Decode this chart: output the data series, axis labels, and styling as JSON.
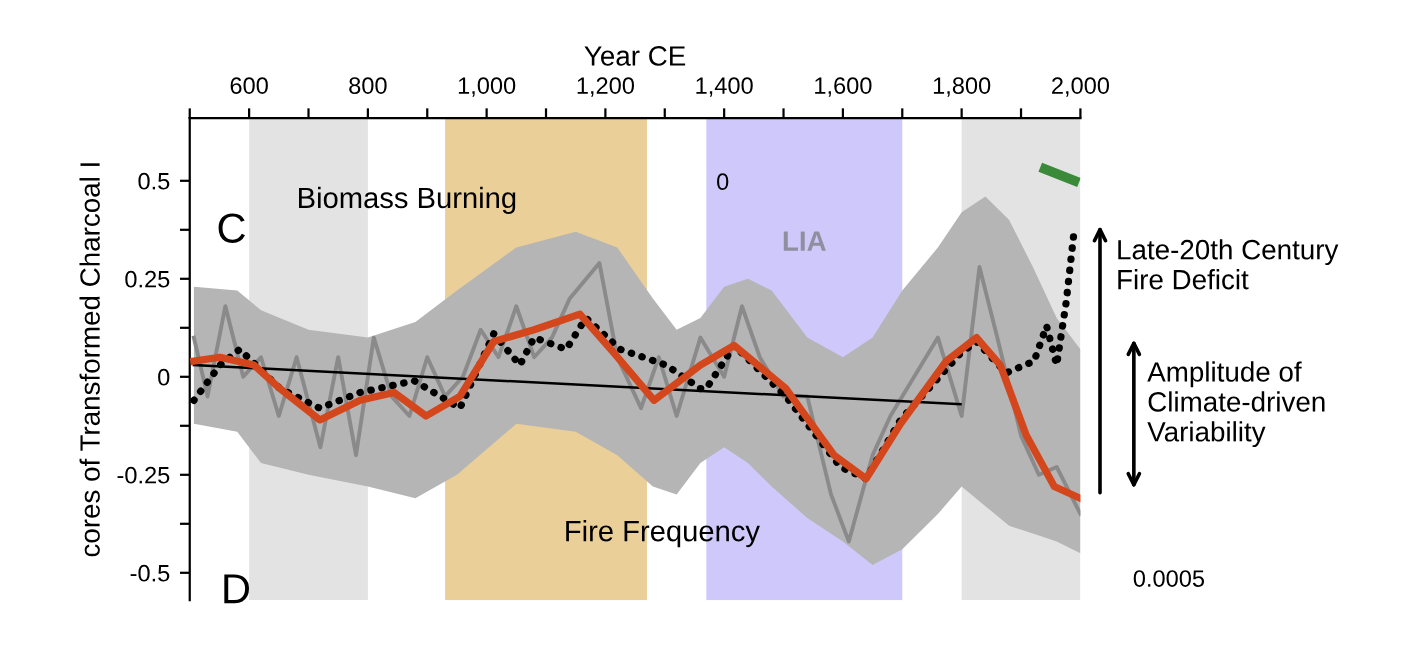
{
  "chart_data": {
    "type": "line",
    "xlabel": "Year CE",
    "ylabel": "cores of Transformed Charcoal I",
    "xlim": [
      500,
      2000
    ],
    "xticks": [
      {
        "value": 500,
        "label": null
      },
      600,
      {
        "value": 700,
        "label": null
      },
      800,
      {
        "value": 900,
        "label": null
      },
      {
        "value": 1000,
        "label": "1,000"
      },
      {
        "value": 1100,
        "label": null
      },
      {
        "value": 1200,
        "label": "1,200"
      },
      {
        "value": 1300,
        "label": null
      },
      {
        "value": 1400,
        "label": "1,400"
      },
      {
        "value": 1500,
        "label": null
      },
      {
        "value": 1600,
        "label": "1,600"
      },
      {
        "value": 1700,
        "label": null
      },
      {
        "value": 1800,
        "label": "1,800"
      },
      {
        "value": 1900,
        "label": null
      },
      {
        "value": 2000,
        "label": "2,000"
      }
    ],
    "ylim": [
      -0.57,
      0.66
    ],
    "yticks": [
      -0.5,
      {
        "value": -0.375,
        "label": null
      },
      -0.25,
      {
        "value": -0.125,
        "label": null
      },
      0,
      {
        "value": 0.125,
        "label": null
      },
      0.25,
      {
        "value": 0.375,
        "label": null
      },
      0.5
    ],
    "bands": [
      {
        "axis": "x",
        "from": 600,
        "to": 800,
        "label": null,
        "color": "#e3e3e3"
      },
      {
        "axis": "x",
        "from": 930,
        "to": 1270,
        "label": null,
        "color": "#ebcf98"
      },
      {
        "axis": "x",
        "from": 1370,
        "to": 1700,
        "label": "LIA",
        "color": "#cfc8fa"
      },
      {
        "axis": "x",
        "from": 1800,
        "to": 2000,
        "label": null,
        "color": "#e3e3e3"
      }
    ],
    "series": [
      {
        "type": "area",
        "color": "#b5b5b5",
        "x": [
          507,
          580,
          620,
          700,
          800,
          880,
          950,
          1050,
          1150,
          1220,
          1280,
          1320,
          1360,
          1400,
          1440,
          1480,
          1540,
          1600,
          1650,
          1700,
          1760,
          1800,
          1840,
          1880,
          1920,
          1960,
          2000
        ],
        "values": [
          null,
          null,
          null,
          null,
          null,
          null,
          null,
          null,
          null,
          null,
          null,
          null,
          null,
          null,
          null,
          null,
          null,
          null,
          null,
          null,
          null,
          null,
          null,
          null,
          null,
          null,
          null
        ],
        "upper": [
          0.23,
          0.22,
          0.17,
          0.12,
          0.1,
          0.14,
          0.22,
          0.33,
          0.37,
          0.33,
          0.2,
          0.12,
          0.15,
          0.23,
          0.25,
          0.22,
          0.1,
          0.05,
          0.1,
          0.22,
          0.33,
          0.42,
          0.46,
          0.4,
          0.28,
          0.15,
          0.07
        ],
        "lower": [
          -0.12,
          -0.14,
          -0.22,
          -0.25,
          -0.28,
          -0.31,
          -0.25,
          -0.12,
          -0.14,
          -0.2,
          -0.28,
          -0.3,
          -0.22,
          -0.18,
          -0.22,
          -0.28,
          -0.36,
          -0.42,
          -0.48,
          -0.44,
          -0.35,
          -0.28,
          -0.33,
          -0.38,
          -0.4,
          -0.42,
          -0.45
        ]
      },
      {
        "color": "#8a8a8a",
        "line_style": "solid",
        "x": [
          507,
          530,
          560,
          590,
          620,
          650,
          680,
          720,
          750,
          780,
          810,
          840,
          870,
          900,
          930,
          960,
          990,
          1020,
          1050,
          1080,
          1110,
          1140,
          1190,
          1220,
          1260,
          1290,
          1320,
          1360,
          1400,
          1430,
          1460,
          1500,
          1540,
          1580,
          1610,
          1650,
          1680,
          1720,
          1760,
          1800,
          1830,
          1860,
          1900,
          1930,
          1960,
          2000
        ],
        "values": [
          0.1,
          -0.05,
          0.18,
          0.0,
          0.05,
          -0.1,
          0.05,
          -0.18,
          0.05,
          -0.2,
          0.1,
          -0.05,
          -0.1,
          0.05,
          -0.05,
          0.0,
          0.12,
          0.05,
          0.18,
          0.05,
          0.1,
          0.2,
          0.29,
          0.05,
          -0.08,
          0.05,
          -0.1,
          0.1,
          0.0,
          0.18,
          0.05,
          -0.05,
          -0.05,
          -0.3,
          -0.42,
          -0.2,
          -0.1,
          0.0,
          0.1,
          -0.1,
          0.28,
          0.1,
          -0.15,
          -0.25,
          -0.23,
          -0.35
        ]
      },
      {
        "color": "#000000",
        "line_style": "solid",
        "x": [
          507,
          1798
        ],
        "values": [
          0.03,
          -0.07
        ]
      },
      {
        "color": "#000000",
        "line_style": "dotted",
        "x": [
          507,
          551,
          584,
          652,
          719,
          787,
          878,
          955,
          1012,
          1056,
          1080,
          1134,
          1167,
          1225,
          1302,
          1360,
          1370,
          1417,
          1504,
          1596,
          1639,
          1697,
          1798,
          1825,
          1875,
          1922,
          1943,
          1960,
          1976,
          1990
        ],
        "values": [
          -0.06,
          0.03,
          0.07,
          -0.03,
          -0.08,
          -0.04,
          -0.01,
          -0.08,
          0.11,
          0.03,
          0.1,
          0.07,
          0.15,
          0.07,
          0.03,
          -0.03,
          -0.03,
          0.08,
          -0.05,
          -0.23,
          -0.26,
          -0.11,
          0.06,
          0.09,
          0.01,
          0.04,
          0.13,
          0.03,
          0.19,
          0.38
        ]
      },
      {
        "color": "#d4461c",
        "line_style": "solid",
        "x": [
          507,
          551,
          608,
          652,
          719,
          787,
          844,
          898,
          955,
          1012,
          1080,
          1157,
          1215,
          1282,
          1360,
          1417,
          1504,
          1585,
          1639,
          1697,
          1774,
          1825,
          1865,
          1909,
          1956,
          2000
        ],
        "values": [
          0.04,
          0.05,
          0.03,
          -0.03,
          -0.11,
          -0.06,
          -0.04,
          -0.1,
          -0.05,
          0.09,
          0.12,
          0.16,
          0.06,
          -0.06,
          0.03,
          0.08,
          -0.03,
          -0.2,
          -0.26,
          -0.12,
          0.04,
          0.1,
          0.03,
          -0.15,
          -0.28,
          -0.31
        ]
      },
      {
        "color": "#3a8a3a",
        "line_style": "solid",
        "x": [
          1940,
          1990
        ],
        "values": [
          0.53,
          0.5
        ]
      }
    ],
    "annotations": [
      "C",
      "Biomass Burning",
      "Fire Frequency",
      "Late-20th Century\nFire Deficit",
      "Amplitude of\nClimate-driven\nVariability",
      "D",
      "0",
      "0.0005"
    ],
    "legend": false,
    "grid": false
  }
}
